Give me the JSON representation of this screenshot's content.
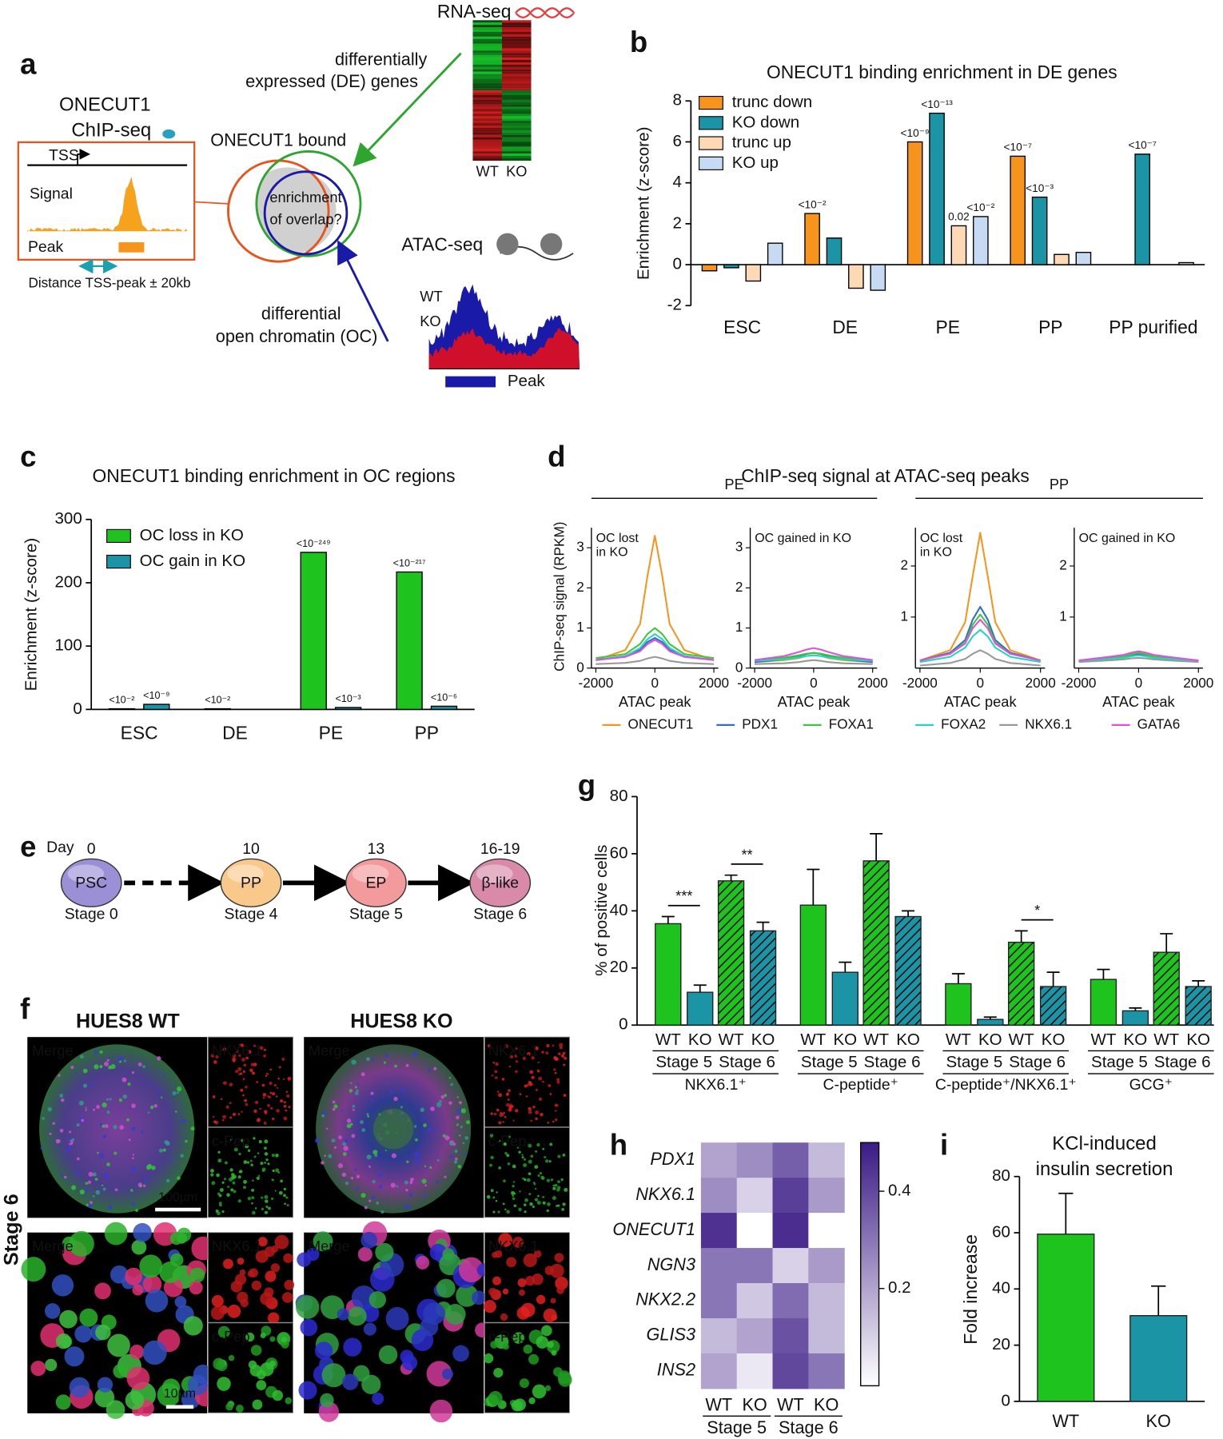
{
  "panel_labels": [
    "a",
    "b",
    "c",
    "d",
    "e",
    "f",
    "g",
    "h",
    "i"
  ],
  "panel_a": {
    "rna_seq": "RNA-seq",
    "heatmap_columns": [
      "WT",
      "KO"
    ],
    "de_label": [
      "differentially",
      "expressed (DE) genes"
    ],
    "chip_title": [
      "ONECUT1",
      "ChIP-seq"
    ],
    "bound_label": "ONECUT1 bound",
    "tss": "TSS",
    "signal": "Signal",
    "peak": "Peak",
    "distance": "Distance TSS-peak ± 20kb",
    "overlap": [
      "enrichment",
      "of overlap?"
    ],
    "atac_seq": "ATAC-seq",
    "track_legend": [
      "WT",
      "KO"
    ],
    "oc_label": [
      "differential",
      "open chromatin (OC)"
    ],
    "track_peak": "Peak"
  },
  "panel_e": {
    "day": "Day",
    "stages": [
      {
        "day": "0",
        "node": "PSC",
        "stage": "Stage 0",
        "color": "#9b8fd6"
      },
      {
        "day": "10",
        "node": "PP",
        "stage": "Stage 4",
        "color": "#f9c98c"
      },
      {
        "day": "13",
        "node": "EP",
        "stage": "Stage 5",
        "color": "#f39a9c"
      },
      {
        "day": "16-19",
        "node": "β-like",
        "stage": "Stage 6",
        "color": "#d88aa8"
      }
    ]
  },
  "panel_f": {
    "columns": [
      "HUES8 WT",
      "HUES8 KO"
    ],
    "row_label": "Stage 6",
    "merge": "Merge",
    "channels": [
      "NKX6.1",
      "c-Pep"
    ],
    "scale_bars": [
      "100µm",
      "10µm"
    ]
  },
  "chart_data": [
    {
      "type": "bar",
      "title": "ONECUT1 binding enrichment in DE genes",
      "ylabel": "Enrichment (z-score)",
      "categories": [
        "ESC",
        "DE",
        "PE",
        "PP",
        "PP purified"
      ],
      "series": [
        {
          "name": "trunc down",
          "color": "#f7941d",
          "values": [
            -0.3,
            2.5,
            6.0,
            5.3,
            null
          ],
          "labels": [
            null,
            "<10⁻²",
            "<10⁻⁹",
            "<10⁻⁷",
            null
          ]
        },
        {
          "name": "KO down",
          "color": "#1b94a6",
          "values": [
            -0.15,
            1.3,
            7.4,
            3.3,
            5.4
          ],
          "labels": [
            null,
            null,
            "<10⁻¹³",
            "<10⁻³",
            "<10⁻⁷"
          ]
        },
        {
          "name": "trunc up",
          "color": "#fdd9b5",
          "values": [
            -0.8,
            -1.15,
            1.9,
            0.5,
            null
          ],
          "labels": [
            null,
            null,
            "0.02",
            null,
            null
          ]
        },
        {
          "name": "KO up",
          "color": "#c6dbf3",
          "values": [
            1.05,
            -1.25,
            2.35,
            0.6,
            0.1
          ],
          "labels": [
            null,
            null,
            "<10⁻²",
            null,
            null
          ]
        }
      ],
      "ylim": [
        -2,
        8
      ],
      "yticks": [
        -2,
        0,
        2,
        4,
        6,
        8
      ],
      "legend": "upper left"
    },
    {
      "type": "bar",
      "title": "ONECUT1 binding enrichment in OC regions",
      "ylabel": "Enrichment (z-score)",
      "categories": [
        "ESC",
        "DE",
        "PE",
        "PP"
      ],
      "series": [
        {
          "name": "OC loss in KO",
          "color": "#1ec31e",
          "values": [
            1,
            1,
            248,
            217
          ],
          "labels": [
            "<10⁻²",
            "<10⁻²",
            "<10⁻²⁴⁹",
            "<10⁻²¹⁷"
          ]
        },
        {
          "name": "OC gain in KO",
          "color": "#1b94a6",
          "values": [
            8,
            0,
            3,
            5
          ],
          "labels": [
            "<10⁻⁹",
            null,
            "<10⁻³",
            "<10⁻⁶"
          ]
        }
      ],
      "ylim": [
        0,
        300
      ],
      "yticks": [
        0,
        100,
        200,
        300
      ],
      "legend": "upper left"
    },
    {
      "type": "line",
      "title": "ChIP-seq signal at ATAC-seq peaks",
      "ylabel": "ChIP-seq signal (RPKM)",
      "xlabel": "ATAC peak",
      "x": [
        -2000,
        -1000,
        -500,
        -250,
        0,
        250,
        500,
        1000,
        2000
      ],
      "xlim": [
        -2150,
        2150
      ],
      "xticks": [
        -2000,
        0,
        2000
      ],
      "legend_items": [
        {
          "name": "ONECUT1",
          "color": "#f7941d"
        },
        {
          "name": "PDX1",
          "color": "#2f6fc4"
        },
        {
          "name": "FOXA1",
          "color": "#3cc83c"
        },
        {
          "name": "FOXA2",
          "color": "#1fd6c0"
        },
        {
          "name": "NKX6.1",
          "color": "#999999"
        },
        {
          "name": "GATA6",
          "color": "#e04fe0"
        }
      ],
      "groups": [
        {
          "name": "PE",
          "ylim": [
            0,
            3.5
          ],
          "yticks": [
            0,
            1,
            2,
            3
          ],
          "panels": [
            {
              "label": [
                "OC lost",
                "in KO"
              ],
              "values": [
                [
                  0.2,
                  0.45,
                  1.1,
                  2.3,
                  3.3,
                  2.3,
                  1.1,
                  0.45,
                  0.2
                ],
                [
                  0.2,
                  0.3,
                  0.45,
                  0.65,
                  0.75,
                  0.65,
                  0.45,
                  0.3,
                  0.2
                ],
                [
                  0.25,
                  0.35,
                  0.6,
                  0.85,
                  1.0,
                  0.85,
                  0.6,
                  0.35,
                  0.25
                ],
                [
                  0.2,
                  0.3,
                  0.5,
                  0.72,
                  0.85,
                  0.72,
                  0.5,
                  0.3,
                  0.2
                ],
                [
                  0.1,
                  0.13,
                  0.18,
                  0.24,
                  0.28,
                  0.24,
                  0.18,
                  0.13,
                  0.1
                ],
                [
                  0.2,
                  0.28,
                  0.42,
                  0.6,
                  0.7,
                  0.6,
                  0.42,
                  0.28,
                  0.2
                ]
              ]
            },
            {
              "label": [
                "OC gained in KO"
              ],
              "values": [
                [
                  0.15,
                  0.2,
                  0.25,
                  0.3,
                  0.32,
                  0.3,
                  0.25,
                  0.2,
                  0.15
                ],
                [
                  0.15,
                  0.22,
                  0.3,
                  0.35,
                  0.38,
                  0.35,
                  0.3,
                  0.22,
                  0.15
                ],
                [
                  0.2,
                  0.26,
                  0.32,
                  0.36,
                  0.38,
                  0.36,
                  0.32,
                  0.26,
                  0.2
                ],
                [
                  0.18,
                  0.22,
                  0.27,
                  0.3,
                  0.32,
                  0.3,
                  0.27,
                  0.22,
                  0.18
                ],
                [
                  0.1,
                  0.12,
                  0.15,
                  0.18,
                  0.2,
                  0.18,
                  0.15,
                  0.12,
                  0.1
                ],
                [
                  0.2,
                  0.3,
                  0.4,
                  0.46,
                  0.5,
                  0.46,
                  0.4,
                  0.3,
                  0.2
                ]
              ]
            }
          ]
        },
        {
          "name": "PP",
          "ylim": [
            0,
            2.75
          ],
          "yticks": [
            1,
            2
          ],
          "panels": [
            {
              "label": [
                "OC lost",
                "in KO"
              ],
              "values": [
                [
                  0.15,
                  0.35,
                  0.9,
                  1.8,
                  2.65,
                  1.8,
                  0.9,
                  0.35,
                  0.15
                ],
                [
                  0.15,
                  0.3,
                  0.55,
                  0.95,
                  1.2,
                  0.95,
                  0.55,
                  0.3,
                  0.15
                ],
                [
                  0.15,
                  0.28,
                  0.5,
                  0.85,
                  1.05,
                  0.85,
                  0.5,
                  0.28,
                  0.15
                ],
                [
                  0.12,
                  0.22,
                  0.4,
                  0.62,
                  0.75,
                  0.62,
                  0.4,
                  0.22,
                  0.12
                ],
                [
                  0.05,
                  0.1,
                  0.18,
                  0.28,
                  0.35,
                  0.28,
                  0.18,
                  0.1,
                  0.05
                ],
                [
                  0.15,
                  0.28,
                  0.48,
                  0.78,
                  0.95,
                  0.78,
                  0.48,
                  0.28,
                  0.15
                ]
              ]
            },
            {
              "label": [
                "OC gained in KO"
              ],
              "values": [
                [
                  0.15,
                  0.2,
                  0.22,
                  0.25,
                  0.27,
                  0.25,
                  0.22,
                  0.2,
                  0.15
                ],
                [
                  0.15,
                  0.2,
                  0.22,
                  0.26,
                  0.28,
                  0.26,
                  0.22,
                  0.2,
                  0.15
                ],
                [
                  0.15,
                  0.2,
                  0.23,
                  0.27,
                  0.3,
                  0.27,
                  0.23,
                  0.2,
                  0.15
                ],
                [
                  0.13,
                  0.18,
                  0.2,
                  0.23,
                  0.25,
                  0.23,
                  0.2,
                  0.18,
                  0.13
                ],
                [
                  0.12,
                  0.15,
                  0.17,
                  0.19,
                  0.2,
                  0.19,
                  0.17,
                  0.15,
                  0.12
                ],
                [
                  0.15,
                  0.22,
                  0.26,
                  0.3,
                  0.33,
                  0.3,
                  0.26,
                  0.22,
                  0.15
                ]
              ]
            }
          ]
        }
      ]
    },
    {
      "type": "bar",
      "ylabel": "% of positive cells",
      "ylim": [
        0,
        80
      ],
      "yticks": [
        0,
        20,
        40,
        60,
        80
      ],
      "groups": [
        "NKX6.1⁺",
        "C-peptide⁺",
        "C-peptide⁺/NKX6.1⁺",
        "GCG⁺"
      ],
      "stages": [
        {
          "name": "Stage 5",
          "hatched": false,
          "significance": [
            "***",
            null,
            null,
            null
          ],
          "series": [
            {
              "name": "WT",
              "color": "#1ec31e",
              "values": [
                35.5,
                42,
                14.5,
                16
              ],
              "errors": [
                2.5,
                12.5,
                3.5,
                3.5
              ]
            },
            {
              "name": "KO",
              "color": "#1b94a6",
              "values": [
                11.5,
                18.5,
                2,
                5
              ],
              "errors": [
                2.5,
                3.5,
                0.8,
                1
              ]
            }
          ]
        },
        {
          "name": "Stage 6",
          "hatched": true,
          "significance": [
            "**",
            null,
            "*",
            null
          ],
          "series": [
            {
              "name": "WT",
              "color": "#1ec31e",
              "values": [
                50.5,
                57.5,
                29,
                25.5
              ],
              "errors": [
                2,
                9.5,
                4,
                6.5
              ]
            },
            {
              "name": "KO",
              "color": "#1b94a6",
              "values": [
                33,
                38,
                13.5,
                13.5
              ],
              "errors": [
                3,
                2,
                5,
                2
              ]
            }
          ]
        }
      ]
    },
    {
      "type": "heatmap",
      "rows": [
        "PDX1",
        "NKX6.1",
        "ONECUT1",
        "NGN3",
        "NKX2.2",
        "GLIS3",
        "INS2"
      ],
      "columns": [
        "WT",
        "KO",
        "WT",
        "KO"
      ],
      "column_groups": [
        "Stage 5",
        "Stage 6"
      ],
      "values": [
        [
          0.2,
          0.25,
          0.35,
          0.15
        ],
        [
          0.25,
          0.1,
          0.42,
          0.22
        ],
        [
          0.45,
          0.0,
          0.46,
          0.0
        ],
        [
          0.3,
          0.3,
          0.1,
          0.22
        ],
        [
          0.3,
          0.12,
          0.32,
          0.15
        ],
        [
          0.15,
          0.2,
          0.38,
          0.15
        ],
        [
          0.2,
          0.05,
          0.4,
          0.3
        ]
      ],
      "clim": [
        0,
        0.5
      ],
      "cticks": [
        0.2,
        0.4
      ],
      "colormap": [
        "#ffffff",
        "#3b1a85"
      ]
    },
    {
      "type": "bar",
      "title": [
        "KCl-induced",
        "insulin secretion"
      ],
      "ylabel": "Fold increase",
      "categories": [
        "WT",
        "KO"
      ],
      "colors": [
        "#1ec31e",
        "#1b94a6"
      ],
      "values": [
        59.5,
        30.5
      ],
      "errors": [
        14.5,
        10.5
      ],
      "ylim": [
        0,
        80
      ],
      "yticks": [
        0,
        20,
        40,
        60,
        80
      ]
    }
  ]
}
